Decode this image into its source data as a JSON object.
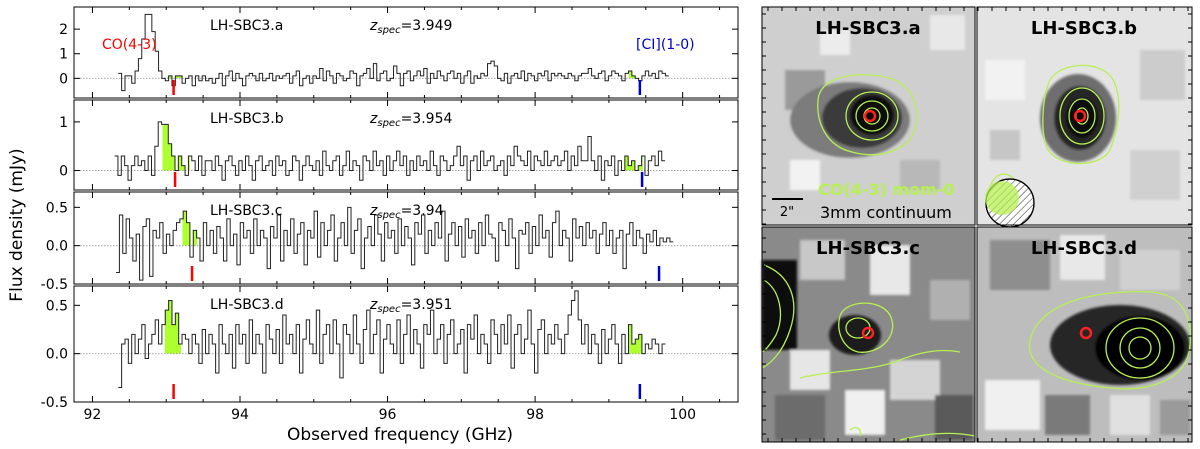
{
  "figure": {
    "ylabel": "Flux density (mJy)",
    "xlabel": "Observed frequency (GHz)",
    "x_ticks": [
      92,
      94,
      96,
      98,
      100
    ],
    "xlim": [
      91.75,
      100.75
    ],
    "line_labels": {
      "co": "CO(4-3)",
      "ci": "[CI](1-0)"
    },
    "colors": {
      "fill": "#adff2f",
      "co_marker": "#ff0000",
      "ci_marker": "#0000cc",
      "contour": "#b6f053",
      "ring": "#ff2020"
    },
    "legend": {
      "mom0": "CO(4-3) mom-0",
      "continuum": "3mm continuum",
      "scale": "2\""
    }
  },
  "chart_data": [
    {
      "type": "line",
      "name": "LH-SBC3.a",
      "z_prefix": "z",
      "z_sub": "spec",
      "z_value": "=3.949",
      "ylim": [
        -0.8,
        2.9
      ],
      "yticks": [
        0,
        1,
        2
      ],
      "show_labels": true,
      "co_freq": 93.1,
      "ci_freq": 99.42,
      "fill_ranges": [
        [
          92.95,
          93.22
        ],
        [
          99.27,
          99.45
        ]
      ],
      "x_start": 92.35,
      "x_step": 0.0455,
      "values": [
        0.2,
        -0.5,
        0.1,
        0.1,
        -0.2,
        0.3,
        0.8,
        1.6,
        2.6,
        2.6,
        1.9,
        1.1,
        0.3,
        0.0,
        -0.1,
        0.1,
        -0.3,
        0.1,
        0.1,
        -0.2,
        0.0,
        0.1,
        -0.3,
        0.1,
        -0.1,
        0.1,
        -0.1,
        0.0,
        -0.2,
        0.0,
        0.2,
        -0.3,
        0.1,
        0.3,
        -0.1,
        0.2,
        0.0,
        -0.3,
        0.1,
        0.2,
        0.1,
        -0.1,
        0.2,
        -0.1,
        0.0,
        0.2,
        -0.1,
        0.1,
        0.0,
        0.1,
        0.2,
        -0.2,
        0.1,
        0.3,
        -0.3,
        0.0,
        0.1,
        -0.2,
        0.1,
        0.0,
        0.4,
        -0.1,
        0.3,
        0.1,
        -0.2,
        0.2,
        0.1,
        -0.1,
        0.0,
        0.3,
        0.2,
        -0.3,
        0.1,
        0.2,
        0.4,
        0.0,
        0.6,
        -0.1,
        0.2,
        0.3,
        -0.1,
        0.0,
        0.5,
        0.2,
        -0.3,
        0.2,
        0.3,
        -0.1,
        0.1,
        0.3,
        0.1,
        0.4,
        -0.2,
        0.2,
        0.0,
        0.3,
        0.1,
        -0.1,
        0.2,
        0.3,
        0.0,
        0.2,
        -0.2,
        0.1,
        0.3,
        -0.2,
        0.1,
        0.0,
        0.2,
        0.1,
        0.6,
        0.7,
        0.5,
        0.0,
        -0.1,
        0.2,
        -0.2,
        0.1,
        0.2,
        0.0,
        0.3,
        -0.1,
        0.2,
        0.1,
        -0.1,
        0.2,
        0.1,
        0.3,
        -0.1,
        0.2,
        0.1,
        0.2,
        0.1,
        0.0,
        0.2,
        0.1,
        -0.1,
        0.1,
        0.2,
        0.2,
        0.4,
        0.1,
        0.0,
        0.2,
        0.3,
        -0.1,
        0.1,
        0.3,
        0.2,
        0.1,
        -0.1,
        0.2,
        0.3,
        0.1,
        0.0,
        -0.1,
        0.1,
        0.3,
        0.1,
        0.2,
        0.0,
        0.3,
        0.2,
        0.1
      ]
    },
    {
      "type": "line",
      "name": "LH-SBC3.b",
      "z_prefix": "z",
      "z_sub": "spec",
      "z_value": "=3.954",
      "ylim": [
        -0.4,
        1.45
      ],
      "yticks": [
        0,
        1
      ],
      "show_labels": false,
      "co_freq": 93.12,
      "ci_freq": 99.45,
      "fill_ranges": [
        [
          92.95,
          93.32
        ],
        [
          99.22,
          99.46
        ]
      ],
      "x_start": 92.3,
      "x_step": 0.0455,
      "values": [
        0.3,
        -0.1,
        0.3,
        0.1,
        -0.2,
        0.1,
        0.3,
        0.1,
        0.2,
        0.0,
        0.3,
        -0.1,
        0.5,
        1.0,
        0.95,
        0.95,
        0.55,
        0.3,
        0.0,
        0.3,
        0.1,
        -0.1,
        0.3,
        0.2,
        0.0,
        0.3,
        -0.1,
        0.2,
        0.2,
        0.0,
        0.3,
        0.1,
        -0.2,
        0.2,
        0.3,
        0.1,
        -0.1,
        0.2,
        0.0,
        0.3,
        0.1,
        -0.2,
        0.2,
        0.3,
        0.0,
        0.1,
        0.2,
        -0.1,
        0.3,
        0.1,
        0.2,
        -0.1,
        0.0,
        0.3,
        0.2,
        -0.2,
        0.1,
        0.3,
        0.1,
        0.0,
        0.2,
        -0.1,
        0.4,
        0.1,
        0.0,
        0.2,
        0.3,
        -0.1,
        0.1,
        0.4,
        0.0,
        0.2,
        0.1,
        -0.2,
        0.3,
        0.2,
        0.0,
        0.4,
        0.1,
        0.2,
        -0.1,
        0.3,
        0.0,
        0.2,
        0.4,
        0.1,
        0.3,
        -0.1,
        0.2,
        0.0,
        0.3,
        0.1,
        0.2,
        0.0,
        0.4,
        0.1,
        -0.1,
        0.3,
        0.2,
        0.0,
        0.1,
        0.3,
        0.5,
        0.1,
        0.3,
        -0.2,
        0.2,
        0.3,
        0.0,
        0.4,
        0.1,
        0.2,
        0.3,
        0.0,
        0.1,
        0.2,
        -0.1,
        0.3,
        0.1,
        0.5,
        0.3,
        0.2,
        0.1,
        0.4,
        0.0,
        0.3,
        0.2,
        0.1,
        0.4,
        0.1,
        0.2,
        0.3,
        0.1,
        0.2,
        0.4,
        0.0,
        0.3,
        0.1,
        0.5,
        0.2,
        0.2,
        0.7,
        0.2,
        0.0,
        0.3,
        -0.2,
        0.2,
        0.1,
        0.3,
        -0.1,
        0.2,
        0.0,
        0.3,
        0.1,
        0.2,
        0.0,
        0.1,
        0.3,
        -0.1,
        0.2,
        0.3,
        0.1,
        0.4,
        0.2
      ]
    },
    {
      "type": "line",
      "name": "LH-SBC3.c",
      "z_prefix": "z",
      "z_sub": "spec",
      "z_value": "=3.94",
      "ylim": [
        -0.5,
        0.7
      ],
      "yticks": [
        -0.5,
        0.0,
        0.5
      ],
      "show_labels": false,
      "co_freq": 93.35,
      "ci_freq": 99.68,
      "fill_ranges": [
        [
          93.22,
          93.42
        ]
      ],
      "x_start": 92.32,
      "x_step": 0.0455,
      "values": [
        -0.35,
        0.4,
        -0.1,
        0.35,
        0.1,
        -0.2,
        0.15,
        -0.45,
        0.25,
        0.35,
        -0.4,
        0.2,
        0.1,
        0.3,
        -0.1,
        0.15,
        0.0,
        0.2,
        0.3,
        0.35,
        0.45,
        0.3,
        -0.15,
        0.2,
        0.1,
        -0.2,
        0.3,
        0.0,
        0.2,
        -0.1,
        0.25,
        0.1,
        -0.2,
        0.35,
        0.0,
        0.15,
        -0.25,
        0.3,
        0.1,
        0.2,
        -0.1,
        0.35,
        0.0,
        0.2,
        0.1,
        -0.3,
        0.25,
        0.1,
        0.4,
        -0.2,
        0.2,
        0.0,
        0.35,
        -0.1,
        0.15,
        0.3,
        -0.25,
        0.2,
        0.1,
        0.45,
        -0.15,
        0.3,
        0.0,
        0.2,
        0.4,
        -0.2,
        0.1,
        0.3,
        0.0,
        0.5,
        -0.1,
        0.2,
        0.35,
        -0.3,
        0.1,
        0.25,
        0.0,
        0.4,
        0.15,
        -0.2,
        0.3,
        0.1,
        0.2,
        -0.1,
        0.35,
        0.0,
        0.25,
        0.1,
        -0.25,
        0.3,
        0.15,
        0.4,
        -0.1,
        0.2,
        0.0,
        0.3,
        0.1,
        0.45,
        -0.2,
        0.15,
        0.3,
        0.0,
        0.25,
        -0.15,
        0.35,
        0.1,
        0.2,
        -0.1,
        0.3,
        0.0,
        0.4,
        0.15,
        0.1,
        -0.2,
        0.3,
        0.2,
        0.0,
        0.35,
        0.1,
        -0.3,
        0.2,
        0.15,
        0.3,
        -0.1,
        0.25,
        0.0,
        0.4,
        0.1,
        0.2,
        -0.15,
        0.3,
        0.45,
        0.0,
        0.2,
        0.1,
        -0.2,
        0.35,
        0.1,
        0.25,
        0.0,
        0.3,
        0.1,
        0.2,
        -0.1,
        0.15,
        0.3,
        0.0,
        0.2,
        -0.1,
        0.1,
        0.2,
        -0.3,
        0.15,
        0.3,
        0.0,
        0.2,
        0.1,
        -0.1,
        0.15,
        0.05,
        0.2,
        0.0,
        0.1,
        0.05,
        0.1,
        0.05
      ]
    },
    {
      "type": "line",
      "name": "LH-SBC3.d",
      "z_prefix": "z",
      "z_sub": "spec",
      "z_value": "=3.951",
      "ylim": [
        -0.5,
        0.7
      ],
      "yticks": [
        -0.5,
        0.0,
        0.5
      ],
      "show_labels": false,
      "co_freq": 93.1,
      "ci_freq": 99.42,
      "fill_ranges": [
        [
          92.98,
          93.2
        ],
        [
          99.27,
          99.5
        ]
      ],
      "x_start": 92.35,
      "x_step": 0.0455,
      "values": [
        -0.35,
        0.1,
        0.15,
        -0.1,
        0.2,
        0.0,
        0.15,
        0.3,
        -0.05,
        0.1,
        0.2,
        0.35,
        0.1,
        0.3,
        0.45,
        0.55,
        0.3,
        0.42,
        0.1,
        0.2,
        0.15,
        0.0,
        0.2,
        0.1,
        -0.1,
        0.25,
        0.0,
        0.2,
        0.1,
        -0.2,
        0.3,
        0.1,
        0.0,
        0.2,
        -0.15,
        0.3,
        0.1,
        0.2,
        -0.1,
        0.35,
        0.0,
        0.2,
        0.1,
        -0.2,
        0.3,
        0.15,
        0.0,
        0.25,
        -0.1,
        0.4,
        0.1,
        0.2,
        0.0,
        0.3,
        -0.2,
        0.15,
        0.35,
        0.1,
        0.0,
        0.45,
        -0.1,
        0.2,
        0.3,
        0.0,
        0.35,
        0.1,
        -0.25,
        0.3,
        0.2,
        0.0,
        0.4,
        0.1,
        -0.1,
        0.25,
        0.45,
        0.0,
        0.2,
        0.35,
        -0.2,
        0.15,
        0.3,
        0.1,
        0.0,
        0.35,
        -0.1,
        0.2,
        0.4,
        0.0,
        0.25,
        0.1,
        -0.15,
        0.3,
        0.2,
        0.45,
        0.0,
        0.15,
        0.3,
        -0.1,
        0.2,
        0.35,
        0.0,
        0.1,
        0.25,
        -0.2,
        0.3,
        0.15,
        0.4,
        0.0,
        0.2,
        0.1,
        -0.1,
        0.35,
        0.2,
        0.0,
        0.3,
        0.1,
        0.4,
        -0.15,
        0.2,
        0.3,
        0.0,
        0.15,
        0.45,
        0.1,
        -0.2,
        0.25,
        0.35,
        0.0,
        0.2,
        0.1,
        0.3,
        0.15,
        0.0,
        0.2,
        0.4,
        0.55,
        0.65,
        0.35,
        0.1,
        0.3,
        0.0,
        0.2,
        0.1,
        -0.1,
        0.25,
        0.0,
        0.15,
        0.3,
        0.1,
        -0.1,
        0.2,
        0.0,
        0.3,
        0.1,
        0.15,
        0.2,
        0.0,
        0.1,
        0.05,
        0.15,
        0.1,
        0.0,
        0.1
      ]
    }
  ],
  "panels": [
    {
      "title": "LH-SBC3.a"
    },
    {
      "title": "LH-SBC3.b"
    },
    {
      "title": "LH-SBC3.c"
    },
    {
      "title": "LH-SBC3.d"
    }
  ]
}
